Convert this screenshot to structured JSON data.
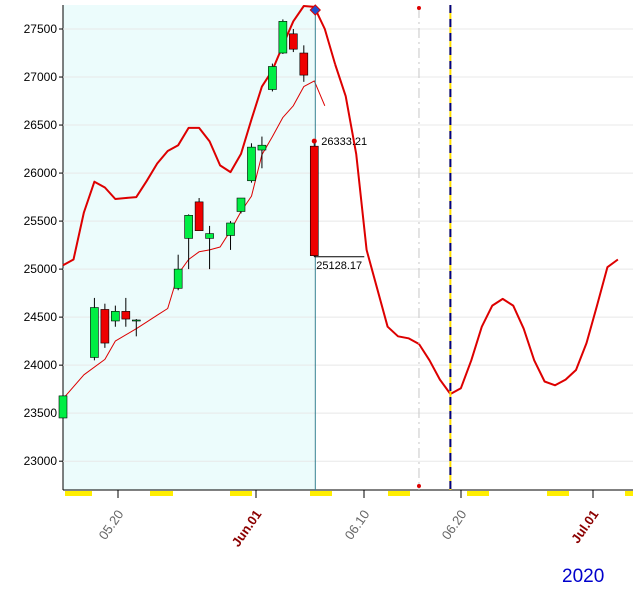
{
  "chart_data": {
    "type": "candlestick",
    "year_label": "2020",
    "y_ticks": [
      23000,
      23500,
      24000,
      24500,
      25000,
      25500,
      26000,
      26500,
      27000,
      27500
    ],
    "ylim": [
      22700,
      27750
    ],
    "x_ticks": [
      {
        "label": "05.20",
        "day": 5,
        "style": "normal"
      },
      {
        "label": "Jun.01",
        "day": 12,
        "style": "month"
      },
      {
        "label": "06.10",
        "day": 20,
        "style": "normal"
      },
      {
        "label": "06.20",
        "day": 28,
        "style": "normal"
      },
      {
        "label": "Jul.01",
        "day": 37,
        "style": "month"
      }
    ],
    "candles": [
      {
        "day": 0,
        "open": 23450,
        "high": 23750,
        "low": 23350,
        "close": 23680
      },
      {
        "day": 3,
        "open": 24080,
        "high": 24700,
        "low": 24050,
        "close": 24600
      },
      {
        "day": 4,
        "open": 24580,
        "high": 24640,
        "low": 24180,
        "close": 24230
      },
      {
        "day": 5,
        "open": 24460,
        "high": 24620,
        "low": 24400,
        "close": 24560
      },
      {
        "day": 6,
        "open": 24560,
        "high": 24700,
        "low": 24400,
        "close": 24480
      },
      {
        "day": 7,
        "open": 24470,
        "high": 24480,
        "low": 24300,
        "close": 24470
      },
      {
        "day": 11,
        "open": 24800,
        "high": 25150,
        "low": 24780,
        "close": 25000
      },
      {
        "day": 12,
        "open": 25320,
        "high": 25570,
        "low": 25000,
        "close": 25560
      },
      {
        "day": 13,
        "open": 25700,
        "high": 25740,
        "low": 25400,
        "close": 25400
      },
      {
        "day": 14,
        "open": 25320,
        "high": 25450,
        "low": 25000,
        "close": 25370
      },
      {
        "day": 16,
        "open": 25350,
        "high": 25500,
        "low": 25200,
        "close": 25480
      },
      {
        "day": 17,
        "open": 25600,
        "high": 25740,
        "low": 25580,
        "close": 25740
      },
      {
        "day": 18,
        "open": 25920,
        "high": 26310,
        "low": 25900,
        "close": 26270
      },
      {
        "day": 19,
        "open": 26240,
        "high": 26380,
        "low": 26050,
        "close": 26290
      },
      {
        "day": 20,
        "open": 26870,
        "high": 27140,
        "low": 26850,
        "close": 27110
      },
      {
        "day": 21,
        "open": 27250,
        "high": 27600,
        "low": 27240,
        "close": 27580
      },
      {
        "day": 22,
        "open": 27450,
        "high": 27500,
        "low": 27260,
        "close": 27290
      },
      {
        "day": 23,
        "open": 27250,
        "high": 27330,
        "low": 26950,
        "close": 27020
      },
      {
        "day": 24,
        "open": 26280,
        "high": 26333.21,
        "low": 25128.17,
        "close": 25140
      }
    ],
    "upper_band": [
      [
        0,
        25040
      ],
      [
        1,
        25100
      ],
      [
        2,
        25590
      ],
      [
        3,
        25910
      ],
      [
        4,
        25850
      ],
      [
        5,
        25730
      ],
      [
        6,
        25740
      ],
      [
        7,
        25750
      ],
      [
        8,
        25920
      ],
      [
        9,
        26100
      ],
      [
        10,
        26230
      ],
      [
        11,
        26290
      ],
      [
        12,
        26470
      ],
      [
        13,
        26470
      ],
      [
        14,
        26330
      ],
      [
        15,
        26080
      ],
      [
        16,
        26010
      ],
      [
        17,
        26200
      ],
      [
        18,
        26560
      ],
      [
        19,
        26900
      ],
      [
        20,
        27070
      ],
      [
        21,
        27330
      ],
      [
        22,
        27580
      ],
      [
        23,
        27740
      ],
      [
        24,
        27730
      ],
      [
        25,
        27500
      ],
      [
        26,
        27130
      ]
    ],
    "ma_line": [
      [
        0,
        23650
      ],
      [
        2,
        23900
      ],
      [
        4,
        24060
      ],
      [
        5,
        24250
      ],
      [
        7,
        24380
      ],
      [
        8,
        24450
      ],
      [
        9,
        24520
      ],
      [
        10,
        24590
      ],
      [
        11,
        24950
      ],
      [
        12,
        25100
      ],
      [
        13,
        25180
      ],
      [
        14,
        25200
      ],
      [
        15,
        25230
      ],
      [
        16,
        25400
      ],
      [
        17,
        25600
      ],
      [
        18,
        25760
      ],
      [
        19,
        26190
      ],
      [
        20,
        26380
      ],
      [
        21,
        26580
      ],
      [
        22,
        26700
      ],
      [
        23,
        26900
      ],
      [
        24,
        26960
      ],
      [
        25,
        26700
      ]
    ],
    "forecast_line": [
      [
        26,
        27130
      ],
      [
        27,
        26800
      ],
      [
        28,
        26200
      ],
      [
        29,
        25200
      ],
      [
        30,
        24800
      ],
      [
        31,
        24400
      ],
      [
        32,
        24300
      ],
      [
        33,
        24280
      ],
      [
        34,
        24220
      ],
      [
        35,
        24050
      ],
      [
        36,
        23850
      ],
      [
        37,
        23700
      ],
      [
        38,
        23760
      ],
      [
        39,
        24050
      ],
      [
        40,
        24400
      ],
      [
        41,
        24620
      ],
      [
        42,
        24690
      ],
      [
        43,
        24620
      ],
      [
        44,
        24380
      ],
      [
        45,
        24050
      ],
      [
        46,
        23830
      ],
      [
        47,
        23790
      ],
      [
        48,
        23850
      ],
      [
        49,
        23950
      ],
      [
        50,
        24230
      ],
      [
        51,
        24620
      ],
      [
        52,
        25020
      ],
      [
        53,
        25100
      ]
    ],
    "annotations": [
      {
        "text": "26333.21",
        "day": 24,
        "value": 26333.21
      },
      {
        "text": "25128.17",
        "day": 24,
        "value": 25128.17
      }
    ],
    "vertical_markers": [
      {
        "day": 24,
        "style": "solid",
        "color": "#2f7f8f"
      },
      {
        "day": 34,
        "style": "dashed",
        "color": "#c8c8c8"
      },
      {
        "day": 37,
        "style": "dashed-blue-yellow",
        "color": "#000080"
      }
    ],
    "colors": {
      "up": "#00ee44",
      "down": "#ee0000",
      "line": "#dd0000",
      "history_bg": "#ecfcfc",
      "weekend_marker": "#ffee00"
    }
  }
}
